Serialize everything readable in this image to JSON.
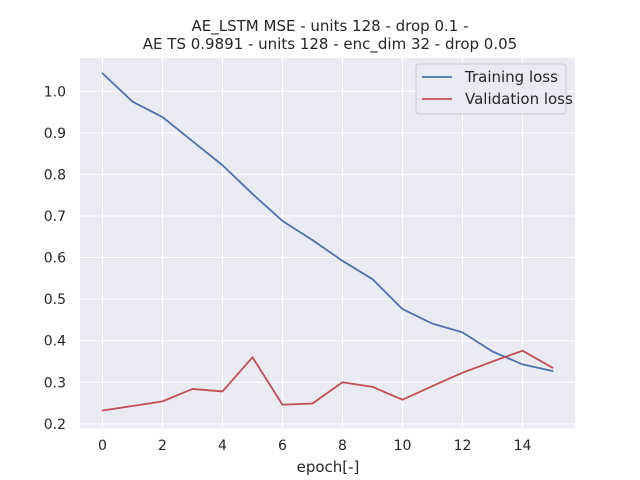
{
  "chart_data": {
    "type": "line",
    "title": [
      "AE_LSTM MSE - units 128 - drop 0.1 -",
      "AE TS 0.9891 - units 128 - enc_dim 32 - drop 0.05"
    ],
    "xlabel": "epoch[-]",
    "ylabel": "",
    "xlim": [
      -0.75,
      15.75
    ],
    "ylim": [
      0.19,
      1.08
    ],
    "xticks": [
      0,
      2,
      4,
      6,
      8,
      10,
      12,
      14
    ],
    "yticks": [
      0.2,
      0.3,
      0.4,
      0.5,
      0.6,
      0.7,
      0.8,
      0.9,
      1.0
    ],
    "grid": true,
    "legend_position": "top-right",
    "x": [
      0,
      1,
      2,
      3,
      4,
      5,
      6,
      7,
      8,
      9,
      10,
      11,
      12,
      13,
      14,
      15
    ],
    "series": [
      {
        "name": "Training loss",
        "color": "#4c72b0",
        "values": [
          1.043,
          0.975,
          0.938,
          0.88,
          0.822,
          0.753,
          0.688,
          0.642,
          0.592,
          0.548,
          0.476,
          0.441,
          0.42,
          0.374,
          0.343,
          0.327
        ]
      },
      {
        "name": "Validation loss",
        "color": "#c44e52",
        "values": [
          0.232,
          0.243,
          0.254,
          0.284,
          0.278,
          0.36,
          0.246,
          0.249,
          0.3,
          0.289,
          0.258,
          0.291,
          0.323,
          0.35,
          0.376,
          0.335
        ]
      }
    ],
    "colors": {
      "axes_background": "#eaeaf2",
      "grid": "#ffffff",
      "text": "#262626"
    }
  }
}
